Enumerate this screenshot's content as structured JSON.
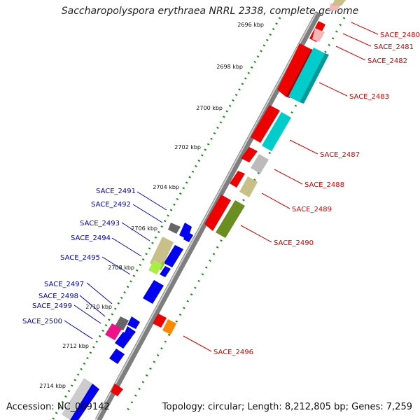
{
  "title": "Saccharopolyspora erythraea NRRL 2338, complete genome",
  "footer": {
    "accession": "Accession: NC_009142",
    "summary": "Topology: circular; Length: 8,212,805 bp; Genes: 7,259"
  },
  "scale_labels": [
    "2696 kbp",
    "2698 kbp",
    "2700 kbp",
    "2702 kbp",
    "2704 kbp",
    "2706 kbp",
    "2708 kbp",
    "2710 kbp",
    "2712 kbp",
    "2714 kbp"
  ],
  "colors": {
    "forward_label": "#dd0000",
    "reverse_label": "#0000cc",
    "backbone": "#888888",
    "tick": "#1a8a1a"
  },
  "forward_genes": [
    "SACE_2480",
    "SACE_2481",
    "SACE_2482",
    "SACE_2483",
    "SACE_2487",
    "SACE_2488",
    "SACE_2489",
    "SACE_2490",
    "SACE_2496"
  ],
  "reverse_genes": [
    "SACE_2491",
    "SACE_2492",
    "SACE_2493",
    "SACE_2494",
    "SACE_2495",
    "SACE_2497",
    "SACE_2498",
    "SACE_2499",
    "SACE_2500"
  ]
}
